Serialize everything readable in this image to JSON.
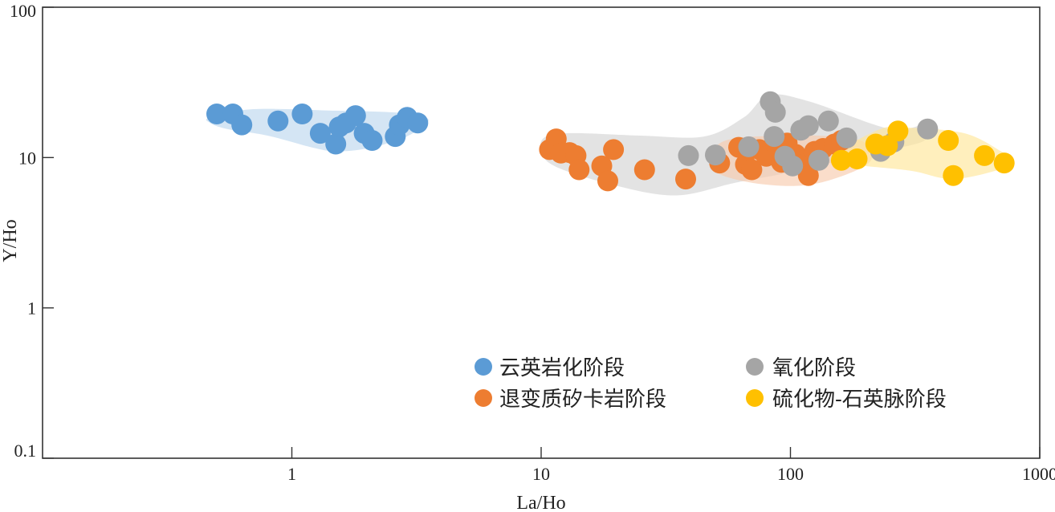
{
  "chart_data": {
    "type": "scatter",
    "xscale": "log",
    "yscale": "log",
    "xlim": [
      0.1,
      1000
    ],
    "ylim": [
      0.1,
      100
    ],
    "xlabel": "La/Ho",
    "ylabel": "Y/Ho",
    "x_ticks": [
      {
        "value": 1,
        "label": "1"
      },
      {
        "value": 10,
        "label": "10"
      },
      {
        "value": 100,
        "label": "100"
      },
      {
        "value": 1000,
        "label": "1000"
      }
    ],
    "y_ticks": [
      {
        "value": 0.1,
        "label": "0.1"
      },
      {
        "value": 1,
        "label": "1"
      },
      {
        "value": 10,
        "label": "10"
      },
      {
        "value": 100,
        "label": "100"
      }
    ],
    "grid": false,
    "legend_position": "bottom-right",
    "series": [
      {
        "name": "云英岩化阶段",
        "color": "#5B9BD5",
        "field_color": "#BDD7EE",
        "hull": [
          [
            0.47,
            18.5
          ],
          [
            0.7,
            21
          ],
          [
            1.5,
            20.5
          ],
          [
            2.5,
            20
          ],
          [
            3.3,
            19
          ],
          [
            3.5,
            17
          ],
          [
            2.8,
            13.5
          ],
          [
            2,
            11.5
          ],
          [
            1.5,
            11
          ],
          [
            1.2,
            11.7
          ],
          [
            0.8,
            14
          ],
          [
            0.55,
            15.5
          ],
          [
            0.47,
            17
          ]
        ],
        "points": [
          [
            0.5,
            19.5
          ],
          [
            0.58,
            19.5
          ],
          [
            0.63,
            16.5
          ],
          [
            0.88,
            17.5
          ],
          [
            1.1,
            19.5
          ],
          [
            1.3,
            14.5
          ],
          [
            1.5,
            12.3
          ],
          [
            1.55,
            16
          ],
          [
            1.65,
            17
          ],
          [
            1.8,
            19
          ],
          [
            1.95,
            14.5
          ],
          [
            2.1,
            13
          ],
          [
            2.6,
            13.8
          ],
          [
            2.7,
            16.5
          ],
          [
            2.9,
            18.5
          ],
          [
            3.2,
            17
          ]
        ]
      },
      {
        "name": "退变质矽卡岩阶段",
        "color": "#ED7D31",
        "field_color": "#F8CBAD",
        "hull": [
          [
            55,
            13
          ],
          [
            90,
            14
          ],
          [
            150,
            13.8
          ],
          [
            200,
            12.5
          ],
          [
            210,
            9.5
          ],
          [
            160,
            7.5
          ],
          [
            110,
            6.5
          ],
          [
            70,
            6.8
          ],
          [
            50,
            8
          ],
          [
            48,
            10
          ]
        ],
        "points": [
          [
            10.8,
            11.3
          ],
          [
            11.5,
            13.3
          ],
          [
            12,
            10.7
          ],
          [
            13,
            10.8
          ],
          [
            13.8,
            10.3
          ],
          [
            14.2,
            8.3
          ],
          [
            17.5,
            8.8
          ],
          [
            18.5,
            7
          ],
          [
            19.5,
            11.3
          ],
          [
            26,
            8.3
          ],
          [
            38,
            7.2
          ],
          [
            52,
            9.2
          ],
          [
            62,
            11.7
          ],
          [
            66,
            9
          ],
          [
            70,
            8.3
          ],
          [
            75,
            11.3
          ],
          [
            80,
            10.2
          ],
          [
            88,
            11.8
          ],
          [
            92,
            9.3
          ],
          [
            97,
            12.5
          ],
          [
            105,
            10.5
          ],
          [
            112,
            9
          ],
          [
            118,
            7.6
          ],
          [
            125,
            11
          ],
          [
            135,
            11.5
          ],
          [
            150,
            12.3
          ],
          [
            160,
            13
          ]
        ]
      },
      {
        "name": "氧化阶段",
        "color": "#A5A5A5",
        "field_color": "#D9D9D9",
        "hull": [
          [
            10,
            12.8
          ],
          [
            12.5,
            14.5
          ],
          [
            25,
            14
          ],
          [
            45,
            13.8
          ],
          [
            65,
            18.5
          ],
          [
            82,
            26
          ],
          [
            120,
            23.5
          ],
          [
            250,
            15.5
          ],
          [
            350,
            16.5
          ],
          [
            340,
            12.8
          ],
          [
            200,
            10.5
          ],
          [
            100,
            8
          ],
          [
            60,
            6.8
          ],
          [
            35,
            5.6
          ],
          [
            20,
            6.5
          ],
          [
            11,
            9
          ]
        ],
        "points": [
          [
            39,
            10.3
          ],
          [
            50,
            10.4
          ],
          [
            68,
            11.8
          ],
          [
            83,
            23.5
          ],
          [
            87,
            20
          ],
          [
            86,
            13.8
          ],
          [
            95,
            10.2
          ],
          [
            102,
            8.8
          ],
          [
            110,
            15.2
          ],
          [
            118,
            16.3
          ],
          [
            130,
            9.6
          ],
          [
            142,
            17.5
          ],
          [
            168,
            13.5
          ],
          [
            230,
            11
          ],
          [
            260,
            12.7
          ],
          [
            355,
            15.5
          ]
        ]
      },
      {
        "name": "硫化物-石英脉阶段",
        "color": "#FFC000",
        "field_color": "#FFE699",
        "hull": [
          [
            150,
            10.5
          ],
          [
            230,
            15.5
          ],
          [
            300,
            15.8
          ],
          [
            500,
            14.5
          ],
          [
            700,
            11
          ],
          [
            780,
            9.5
          ],
          [
            720,
            8.5
          ],
          [
            450,
            7.2
          ],
          [
            300,
            8.2
          ],
          [
            160,
            9.2
          ]
        ],
        "points": [
          [
            160,
            9.6
          ],
          [
            185,
            9.8
          ],
          [
            220,
            12.3
          ],
          [
            245,
            12
          ],
          [
            270,
            15
          ],
          [
            430,
            13
          ],
          [
            450,
            7.6
          ],
          [
            600,
            10.3
          ],
          [
            720,
            9.2
          ]
        ]
      }
    ]
  }
}
